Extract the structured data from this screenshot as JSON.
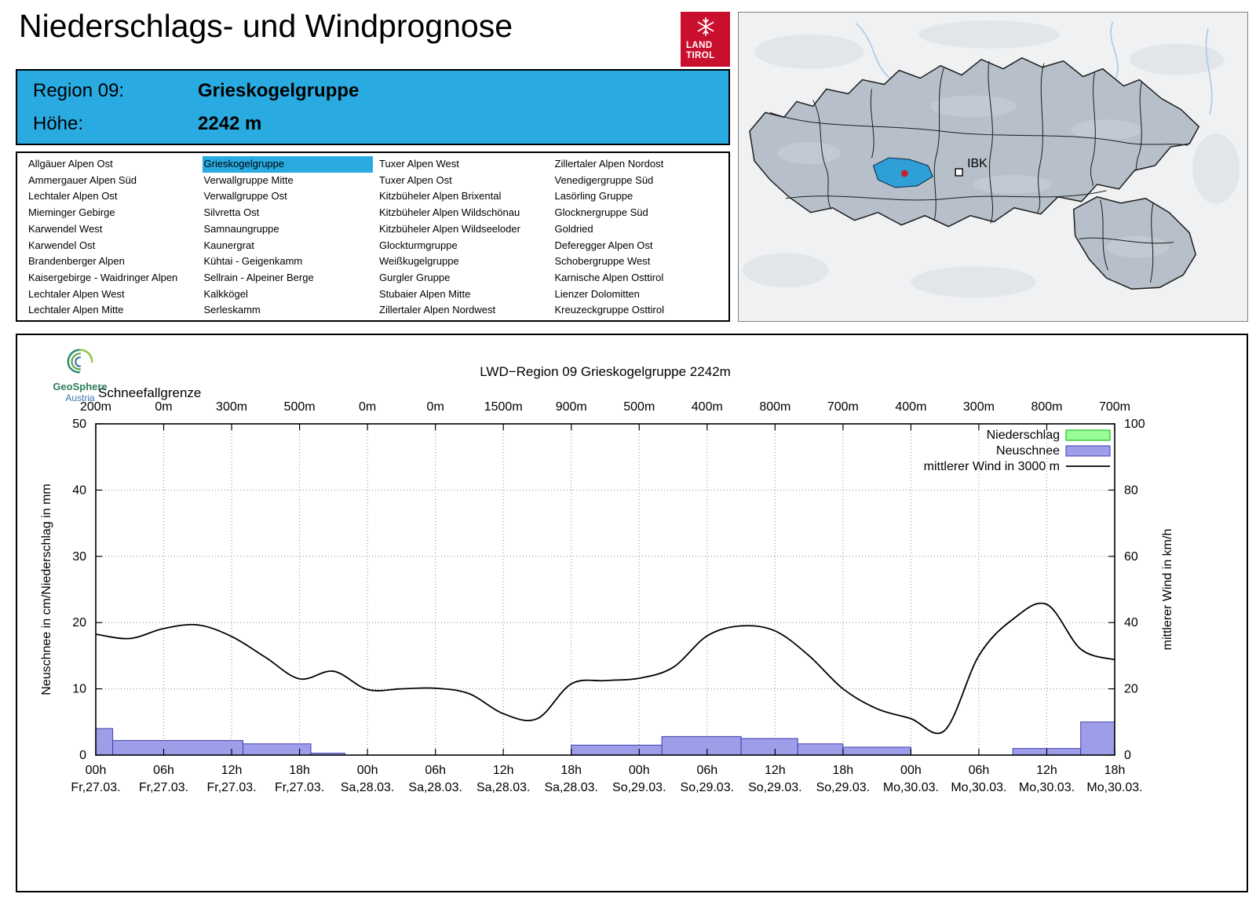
{
  "header": {
    "title": "Niederschlags- und Windprognose"
  },
  "brand": {
    "line1": "LAND",
    "line2": "TIROL",
    "color": "#C8102E"
  },
  "geosphere": {
    "line1": "GeoSphere",
    "line2": "Austria"
  },
  "map": {
    "marker_label": "IBK",
    "selected_region_color": "#2F9FD8",
    "dot_color": "#C2252B"
  },
  "region_header": {
    "label_region": "Region 09:",
    "value_region": "Grieskogelgruppe",
    "label_altitude": "Höhe:",
    "value_altitude": "2242 m",
    "accent_color": "#29ABE2"
  },
  "region_list": {
    "selected": "Grieskogelgruppe",
    "columns": [
      [
        "Allgäuer Alpen Ost",
        "Ammergauer Alpen Süd",
        "Lechtaler Alpen Ost",
        "Mieminger Gebirge",
        "Karwendel West",
        "Karwendel Ost",
        "Brandenberger Alpen",
        "Kaisergebirge - Waidringer Alpen",
        "Lechtaler Alpen West",
        "Lechtaler Alpen Mitte"
      ],
      [
        "Grieskogelgruppe",
        "Verwallgruppe Mitte",
        "Verwallgruppe Ost",
        "Silvretta Ost",
        "Samnaungruppe",
        "Kaunergrat",
        "Kühtai - Geigenkamm",
        "Sellrain - Alpeiner Berge",
        "Kalkkögel",
        "Serleskamm"
      ],
      [
        "Tuxer Alpen West",
        "Tuxer Alpen Ost",
        "Kitzbüheler Alpen Brixental",
        "Kitzbüheler Alpen Wildschönau",
        "Kitzbüheler Alpen Wildseeloder",
        "Glockturmgruppe",
        "Weißkugelgruppe",
        "Gurgler Gruppe",
        "Stubaier Alpen Mitte",
        "Zillertaler Alpen Nordwest"
      ],
      [
        "Zillertaler Alpen Nordost",
        "Venedigergruppe Süd",
        "Lasörling Gruppe",
        "Glocknergruppe Süd",
        "Goldried",
        "Deferegger Alpen Ost",
        "Schobergruppe West",
        "Karnische Alpen Osttirol",
        "Lienzer Dolomitten",
        "Kreuzeckgruppe Osttirol"
      ]
    ]
  },
  "chart_data": {
    "type": "bar+line",
    "title": "LWD−Region 09 Grieskogelgruppe 2242m",
    "snowline": {
      "label": "Schneefallgrenze",
      "values": [
        "200m",
        "0m",
        "300m",
        "500m",
        "0m",
        "0m",
        "1500m",
        "900m",
        "500m",
        "400m",
        "800m",
        "700m",
        "400m",
        "300m",
        "800m",
        "700m"
      ]
    },
    "axes": {
      "ylabel_left": "Neuschnee in cm/Niederschlag in mm",
      "ylabel_right": "mittlerer Wind in km/h",
      "ylim_left": [
        0,
        50
      ],
      "ylim_right": [
        0,
        100
      ],
      "yticks_left": [
        0,
        10,
        20,
        30,
        40,
        50
      ],
      "yticks_right": [
        0,
        20,
        40,
        60,
        80,
        100
      ],
      "x_total_hours": 90,
      "tick_hours": [
        0,
        6,
        12,
        18,
        24,
        30,
        36,
        42,
        48,
        54,
        60,
        66,
        72,
        78,
        84,
        90
      ],
      "tick_labels_hour": [
        "00h",
        "06h",
        "12h",
        "18h",
        "00h",
        "06h",
        "12h",
        "18h",
        "00h",
        "06h",
        "12h",
        "18h",
        "00h",
        "06h",
        "12h",
        "18h"
      ],
      "tick_labels_date": [
        "Fr,27.03.",
        "Fr,27.03.",
        "Fr,27.03.",
        "Fr,27.03.",
        "Sa,28.03.",
        "Sa,28.03.",
        "Sa,28.03.",
        "Sa,28.03.",
        "So,29.03.",
        "So,29.03.",
        "So,29.03.",
        "So,29.03.",
        "Mo,30.03.",
        "Mo,30.03.",
        "Mo,30.03.",
        "Mo,30.03."
      ],
      "grid": "dotted"
    },
    "legend": [
      {
        "label": "Niederschlag",
        "type": "box",
        "fill": "#98FB98",
        "stroke": "#00B400"
      },
      {
        "label": "Neuschnee",
        "type": "box",
        "fill": "#9D9DEA",
        "stroke": "#4040B0"
      },
      {
        "label": "mittlerer Wind in 3000 m",
        "type": "line",
        "stroke": "#000000"
      }
    ],
    "series": {
      "niederschlag_mm": [],
      "neuschnee_cm": [
        {
          "from_h": 0,
          "to_h": 1.5,
          "value": 4.0
        },
        {
          "from_h": 1.5,
          "to_h": 13,
          "value": 2.2
        },
        {
          "from_h": 13,
          "to_h": 19,
          "value": 1.7
        },
        {
          "from_h": 19,
          "to_h": 22,
          "value": 0.3
        },
        {
          "from_h": 42,
          "to_h": 50,
          "value": 1.5
        },
        {
          "from_h": 50,
          "to_h": 57,
          "value": 2.8
        },
        {
          "from_h": 57,
          "to_h": 62,
          "value": 2.5
        },
        {
          "from_h": 62,
          "to_h": 66,
          "value": 1.7
        },
        {
          "from_h": 66,
          "to_h": 72,
          "value": 1.2
        },
        {
          "from_h": 81,
          "to_h": 87,
          "value": 1.0
        },
        {
          "from_h": 87,
          "to_h": 90,
          "value": 5.0
        }
      ],
      "wind_kmh": {
        "step_hours": 3,
        "values": [
          36.5,
          35.2,
          38.2,
          39.3,
          35.8,
          29.5,
          23.0,
          25.3,
          19.8,
          20.0,
          20.2,
          18.5,
          12.5,
          11.0,
          21.5,
          22.5,
          23.2,
          26.5,
          36.0,
          39.0,
          37.5,
          30.0,
          20.0,
          14.0,
          11.0,
          7.5,
          30.0,
          41.0,
          45.5,
          32.0,
          28.8
        ]
      }
    }
  }
}
